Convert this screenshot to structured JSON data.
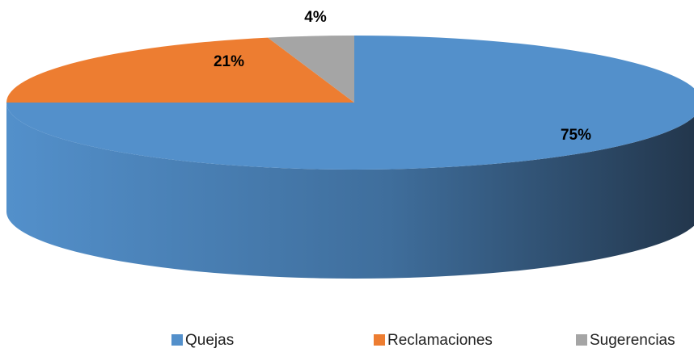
{
  "chart_data": {
    "type": "pie3d",
    "categories": [
      "Quejas",
      "Reclamaciones",
      "Sugerencias"
    ],
    "values": [
      75,
      21,
      4
    ],
    "value_labels": [
      "75%",
      "21%",
      "4%"
    ],
    "colors": [
      "#5390cb",
      "#ed7d31",
      "#a5a5a5"
    ],
    "legend": "bottom"
  }
}
